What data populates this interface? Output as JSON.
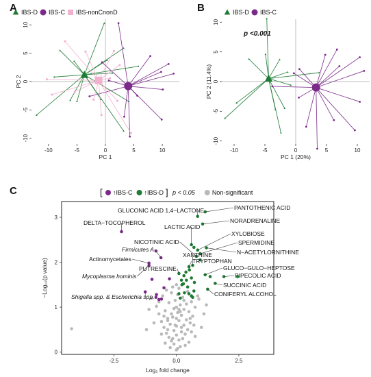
{
  "panels": {
    "a": "A",
    "b": "B",
    "c": "C"
  },
  "colors": {
    "ibs_d": "#1e7b34",
    "ibs_c": "#7b2a8a",
    "ibs_noncnond": "#f3b1d0",
    "nonsig": "#b9b9b9",
    "refline": "#bdbdbd"
  },
  "chart_data": [
    {
      "type": "scatter",
      "panel": "A",
      "xlabel": "PC 1",
      "ylabel": "PC 2",
      "xlim": [
        -13,
        13
      ],
      "ylim": [
        -11,
        11
      ],
      "xticks": [
        -10,
        -5,
        0,
        5,
        10
      ],
      "yticks": [
        -10,
        -5,
        0,
        5,
        10
      ],
      "legend": [
        "IBS-D",
        "IBS-C",
        "IBS-nonCnonD"
      ],
      "legend_position": "top",
      "series": [
        {
          "name": "IBS-D",
          "centroid": [
            -3.7,
            1.2
          ],
          "points": [
            [
              -0.2,
              10.3
            ],
            [
              3.2,
              5.9
            ],
            [
              -8,
              5.5
            ],
            [
              0.3,
              3.8
            ],
            [
              -5.5,
              3.6
            ],
            [
              5.8,
              2.7
            ],
            [
              1.2,
              1.5
            ],
            [
              -9,
              0.8
            ],
            [
              -12.1,
              -5.9
            ],
            [
              -6.2,
              -3.3
            ],
            [
              -5,
              -3.5
            ],
            [
              -0.8,
              -3.1
            ],
            [
              4.1,
              -3.5
            ],
            [
              3.2,
              -8.7
            ]
          ]
        },
        {
          "name": "IBS-C",
          "centroid": [
            4,
            -0.8
          ],
          "points": [
            [
              2.3,
              10.3
            ],
            [
              11.1,
              3.1
            ],
            [
              -0.6,
              3.4
            ],
            [
              9.8,
              1.7
            ],
            [
              0.6,
              0.2
            ],
            [
              12,
              1.4
            ],
            [
              -2.8,
              -2.6
            ],
            [
              10.1,
              -1.4
            ],
            [
              5.6,
              -2.5
            ],
            [
              3.3,
              -6.2
            ],
            [
              9.9,
              -6.7
            ],
            [
              4.3,
              -9.7
            ],
            [
              7.9,
              4.5
            ]
          ]
        },
        {
          "name": "IBS-nonCnonD",
          "centroid": [
            -1.2,
            0.2
          ],
          "points": [
            [
              -7.1,
              7.1
            ],
            [
              -3.5,
              5.3
            ],
            [
              -10.3,
              0.4
            ],
            [
              -9.4,
              -2.3
            ],
            [
              -5.4,
              -1.8
            ],
            [
              -2.1,
              -3.2
            ],
            [
              1.5,
              5.4
            ],
            [
              2.5,
              2.9
            ],
            [
              2.1,
              -3.4
            ],
            [
              4.5,
              -9.1
            ],
            [
              -0.7,
              -5.9
            ],
            [
              0.8,
              0.6
            ]
          ]
        }
      ]
    },
    {
      "type": "scatter",
      "panel": "B",
      "xlabel": "PC 1 (20%)",
      "ylabel": "PC 2 (11.4%)",
      "xlim": [
        -12,
        12
      ],
      "ylim": [
        -10.5,
        10.5
      ],
      "xticks": [
        -10,
        -5,
        0,
        5,
        10
      ],
      "yticks": [
        -10,
        -5,
        0,
        5,
        10
      ],
      "legend": [
        "IBS-D",
        "IBS-C"
      ],
      "legend_position": "top",
      "annotation": "p <0.001",
      "series": [
        {
          "name": "IBS-D",
          "centroid": [
            -4.4,
            0.5
          ],
          "points": [
            [
              -4.7,
              10.6
            ],
            [
              -7.6,
              3.8
            ],
            [
              -4.9,
              4.6
            ],
            [
              -2.6,
              3.7
            ],
            [
              -1.3,
              1.6
            ],
            [
              3.8,
              1.5
            ],
            [
              -0.8,
              -0.6
            ],
            [
              -9.6,
              -3.6
            ],
            [
              -11.5,
              -6.2
            ],
            [
              -1.8,
              -4.5
            ],
            [
              -3.3,
              -4.7
            ],
            [
              -2.4,
              -8.6
            ]
          ]
        },
        {
          "name": "IBS-C",
          "centroid": [
            3.3,
            -1
          ],
          "points": [
            [
              6.7,
              5.4
            ],
            [
              10.4,
              4.1
            ],
            [
              4.8,
              4.5
            ],
            [
              0.6,
              2.1
            ],
            [
              7.1,
              2.6
            ],
            [
              11.1,
              1.8
            ],
            [
              -0.3,
              1.4
            ],
            [
              -3.8,
              -0.8
            ],
            [
              0.5,
              -2.7
            ],
            [
              10.4,
              -3.4
            ],
            [
              6.2,
              -6.5
            ],
            [
              1.7,
              -7.6
            ],
            [
              3.5,
              -11.3
            ],
            [
              9.6,
              -8.2
            ]
          ]
        }
      ]
    },
    {
      "type": "scatter",
      "panel": "C",
      "xlabel": "Log₂ fold change",
      "ylabel": "−Log₁₀(p value)",
      "xlim": [
        -4.6,
        3.9
      ],
      "ylim": [
        -0.05,
        3.35
      ],
      "xticks": [
        -2.5,
        0.0,
        2.5
      ],
      "yticks": [
        0,
        1,
        2,
        3
      ],
      "legend_tokens": {
        "bracket_open": "[",
        "ibs_c": "↑IBS-C",
        "ibs_d": "↑IBS-D",
        "bracket_close": "]",
        "pval": "p < 0.05",
        "nonsig": "Non-significant"
      },
      "legend_position": "top",
      "series": [
        {
          "name": "↑IBS-C",
          "points": [
            [
              -2.2,
              2.68
            ],
            [
              -1.1,
              1.98
            ],
            [
              -1.1,
              1.93
            ],
            [
              -0.98,
              1.62
            ],
            [
              -0.28,
              1.63
            ],
            [
              -0.5,
              1.43
            ],
            [
              -0.8,
              1.28
            ],
            [
              -0.7,
              1.17
            ],
            [
              -0.82,
              1.22
            ],
            [
              -0.6,
              1.18
            ],
            [
              -1.25,
              1.34
            ],
            [
              -0.82,
              2.25
            ],
            [
              -0.62,
              2.1
            ]
          ]
        },
        {
          "name": "↑IBS-D",
          "points": [
            [
              0.85,
              3.02
            ],
            [
              1.15,
              3.12
            ],
            [
              1.05,
              2.85
            ],
            [
              0.6,
              2.39
            ],
            [
              0.7,
              2.33
            ],
            [
              1.2,
              2.32
            ],
            [
              0.85,
              2.27
            ],
            [
              0.95,
              2.19
            ],
            [
              0.8,
              2.13
            ],
            [
              0.95,
              2.05
            ],
            [
              0.65,
              1.93
            ],
            [
              0.5,
              1.9
            ],
            [
              0.38,
              1.78
            ],
            [
              0.52,
              1.83
            ],
            [
              0.1,
              1.75
            ],
            [
              0.3,
              1.7
            ],
            [
              0.2,
              1.6
            ],
            [
              0.4,
              1.6
            ],
            [
              0.6,
              1.65
            ],
            [
              0.72,
              1.55
            ],
            [
              1.15,
              1.72
            ],
            [
              1.35,
              1.68
            ],
            [
              0.28,
              1.52
            ],
            [
              0.22,
              1.5
            ],
            [
              0.45,
              1.45
            ],
            [
              0.5,
              1.3
            ],
            [
              0.32,
              1.32
            ],
            [
              0.1,
              1.3
            ],
            [
              1.9,
              1.68
            ],
            [
              1.55,
              1.53
            ],
            [
              1.25,
              1.4
            ],
            [
              0.65,
              1.22
            ],
            [
              0.6,
              1.25
            ],
            [
              2.45,
              1.68
            ],
            [
              0.15,
              1.2
            ],
            [
              0.7,
              1.36
            ]
          ]
        },
        {
          "name": "Non-significant",
          "points": [
            [
              -4.2,
              0.52
            ],
            [
              0.0,
              0.05
            ],
            [
              0.15,
              0.12
            ],
            [
              -0.1,
              0.18
            ],
            [
              -0.2,
              0.25
            ],
            [
              0.1,
              0.27
            ],
            [
              0.25,
              0.3
            ],
            [
              -0.3,
              0.33
            ],
            [
              0.0,
              0.38
            ],
            [
              0.35,
              0.4
            ],
            [
              -0.4,
              0.42
            ],
            [
              0.2,
              0.45
            ],
            [
              -0.1,
              0.48
            ],
            [
              0.45,
              0.5
            ],
            [
              -0.5,
              0.55
            ],
            [
              0.0,
              0.58
            ],
            [
              0.3,
              0.6
            ],
            [
              -0.25,
              0.62
            ],
            [
              0.55,
              0.65
            ],
            [
              -0.6,
              0.68
            ],
            [
              0.1,
              0.7
            ],
            [
              0.4,
              0.72
            ],
            [
              -0.35,
              0.75
            ],
            [
              -0.15,
              0.78
            ],
            [
              0.65,
              0.8
            ],
            [
              0.2,
              0.82
            ],
            [
              -0.7,
              0.85
            ],
            [
              0.05,
              0.88
            ],
            [
              0.5,
              0.9
            ],
            [
              -0.45,
              0.92
            ],
            [
              0.3,
              0.95
            ],
            [
              -0.1,
              0.97
            ],
            [
              0.75,
              1.0
            ],
            [
              -0.8,
              1.02
            ],
            [
              0.15,
              1.05
            ],
            [
              0.4,
              1.07
            ],
            [
              -0.3,
              1.1
            ],
            [
              0.6,
              1.12
            ],
            [
              -0.05,
              1.15
            ],
            [
              0.9,
              1.18
            ],
            [
              -1.0,
              1.2
            ],
            [
              0.25,
              1.22
            ],
            [
              -0.55,
              1.25
            ],
            [
              0.05,
              1.28
            ],
            [
              -0.2,
              1.32
            ],
            [
              0.45,
              1.35
            ],
            [
              -0.4,
              1.38
            ],
            [
              0.1,
              1.42
            ],
            [
              -0.15,
              1.45
            ],
            [
              0.0,
              1.5
            ],
            [
              -0.05,
              0.6
            ],
            [
              0.2,
              0.55
            ],
            [
              -0.35,
              0.5
            ],
            [
              0.6,
              0.45
            ],
            [
              -0.6,
              0.4
            ],
            [
              0.75,
              0.35
            ],
            [
              -0.15,
              0.3
            ],
            [
              0.5,
              0.22
            ],
            [
              -0.45,
              0.2
            ],
            [
              0.35,
              0.15
            ],
            [
              -0.25,
              0.1
            ],
            [
              0.05,
              0.08
            ],
            [
              1.0,
              0.55
            ],
            [
              -0.9,
              0.65
            ],
            [
              1.1,
              0.85
            ],
            [
              -1.1,
              0.95
            ],
            [
              1.2,
              1.05
            ],
            [
              -0.7,
              1.12
            ],
            [
              0.85,
              1.25
            ],
            [
              -1.2,
              0.5
            ],
            [
              0.0,
              1.0
            ],
            [
              0.15,
              0.9
            ],
            [
              -0.2,
              0.85
            ],
            [
              0.3,
              1.15
            ],
            [
              -0.35,
              0.7
            ],
            [
              0.55,
              0.75
            ],
            [
              0.7,
              0.6
            ],
            [
              -0.5,
              0.8
            ],
            [
              0.0,
              0.75
            ],
            [
              0.1,
              0.95
            ]
          ]
        }
      ],
      "labels": [
        {
          "text": "GLUCONIC ACID 1,4−LACTONE",
          "point": [
            0.85,
            3.02
          ],
          "italic": false
        },
        {
          "text": "PANTOTHENIC ACID",
          "point": [
            1.15,
            3.12
          ],
          "italic": false
        },
        {
          "text": "NORADRENALINE",
          "point": [
            1.05,
            2.85
          ],
          "italic": false
        },
        {
          "text": "DELTA−TOCOPHEROL",
          "point": [
            -2.2,
            2.68
          ],
          "italic": false
        },
        {
          "text": "LACTIC ACID",
          "point": [
            0.6,
            2.39
          ],
          "italic": false
        },
        {
          "text": "XYLOBIOSE",
          "point": [
            0.85,
            2.27
          ],
          "italic": false
        },
        {
          "text": "SPERMIDINE",
          "point": [
            0.95,
            2.19
          ],
          "italic": false
        },
        {
          "text": "NICOTINIC ACID",
          "point": [
            0.8,
            2.13
          ],
          "italic": false
        },
        {
          "text": "N−ACETYLORNITHINE",
          "point": [
            1.2,
            2.32
          ],
          "italic": false
        },
        {
          "text": "Firmicutes A",
          "point": [
            -0.62,
            2.1
          ],
          "italic": true
        },
        {
          "text": "XANTHINE",
          "point": [
            0.65,
            1.93
          ],
          "italic": false
        },
        {
          "text": "TRYPTOPHAN",
          "point": [
            0.5,
            1.9
          ],
          "italic": false
        },
        {
          "text": "Actinomycetales",
          "point": [
            -1.1,
            1.98
          ],
          "italic": false
        },
        {
          "text": "PUTRESCINE",
          "point": [
            0.1,
            1.75
          ],
          "italic": false
        },
        {
          "text": "GLUCO−GULO−HEPTOSE",
          "point": [
            1.15,
            1.72
          ],
          "italic": false
        },
        {
          "text": "PIPECOLIC ACID",
          "point": [
            1.9,
            1.68
          ],
          "italic": false
        },
        {
          "text": "Mycoplasma hominis",
          "point": [
            -1.1,
            1.93
          ],
          "italic": true
        },
        {
          "text": "SUCCINIC ACID",
          "point": [
            1.55,
            1.53
          ],
          "italic": false
        },
        {
          "text": "CONIFERYL ALCOHOL",
          "point": [
            1.25,
            1.4
          ],
          "italic": false
        },
        {
          "text": "Shigella spp. & Escherichia spp.",
          "point": [
            -1.25,
            1.34
          ],
          "italic": true
        }
      ]
    }
  ]
}
